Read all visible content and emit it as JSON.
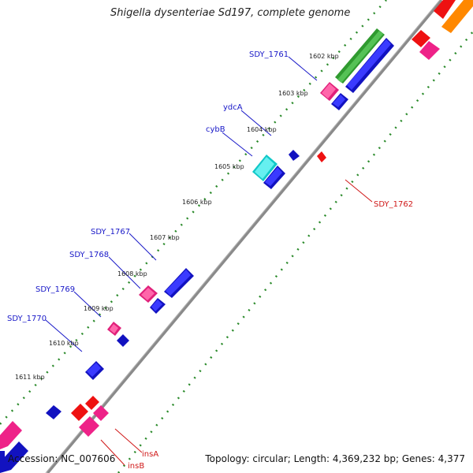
{
  "title": "Shigella dysenteriae Sd197, complete genome",
  "footer": {
    "accession": "Accession: NC_007606",
    "summary": "Topology: circular; Length: 4,369,232 bp; Genes: 4,377"
  },
  "kbp_labels": [
    "1602 kbp",
    "1603 kbp",
    "1604 kbp",
    "1605 kbp",
    "1606 kbp",
    "1607 kbp",
    "1608 kbp",
    "1609 kbp",
    "1610 kbp",
    "1611 kbp"
  ],
  "gene_labels_blue": [
    "SDY_1761",
    "ydcA",
    "cybB",
    "SDY_1767",
    "SDY_1768",
    "SDY_1769",
    "SDY_1770"
  ],
  "gene_labels_red": [
    "SDY_1762",
    "insA",
    "insB"
  ],
  "colors": {
    "blue": "#1a1aee",
    "magenta": "#ee2288",
    "green": "#33aa33",
    "cyan": "#11dddd",
    "red": "#ee1111",
    "orange": "#ff8800",
    "backbone": "#888888",
    "tick": "#228822"
  }
}
